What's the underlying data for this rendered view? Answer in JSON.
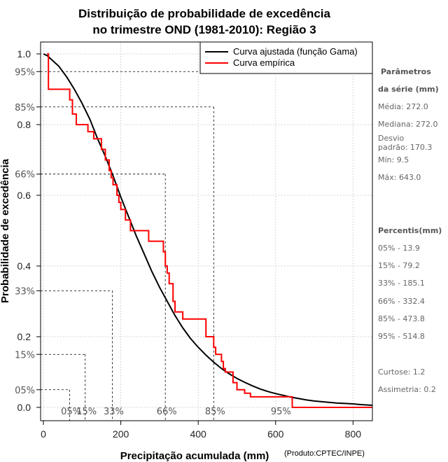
{
  "chart_data": {
    "type": "line",
    "title_line1": "Distribuição de probabilidade de excedência",
    "title_line2": "no trimestre OND (1981-2010): Região 3",
    "xlabel": "Precipitação acumulada (mm)",
    "ylabel": "Probabilidade de excedência",
    "credit": "(Produto:CPTEC/INPE)",
    "xlim": [
      0,
      850
    ],
    "ylim": [
      -0.04,
      1.04
    ],
    "x_ticks": [
      0,
      200,
      400,
      600,
      800
    ],
    "x_tick_labels": [
      "0",
      "200",
      "400",
      "600",
      "800"
    ],
    "y_ticks": [
      0.0,
      0.2,
      0.4,
      0.6,
      0.8,
      1.0
    ],
    "y_tick_labels": [
      "0.0",
      "0.2",
      "0.4",
      "0.6",
      "0.8",
      "1.0"
    ],
    "pct_y_ticks": [
      0.05,
      0.15,
      0.33,
      0.66,
      0.85,
      0.95
    ],
    "pct_y_labels": [
      "05%",
      "15%",
      "33%",
      "66%",
      "85%",
      "95%"
    ],
    "pct_x": [
      68,
      108,
      178,
      315,
      440,
      0
    ],
    "pct_x_labels": [
      "05%",
      "15%",
      "33%",
      "66%",
      "85%",
      "95%"
    ],
    "pct_x_label_pos": [
      68,
      108,
      178,
      315,
      440,
      610
    ],
    "series": [
      {
        "name": "Curva ajustada (função Gama)",
        "color": "#000000",
        "x": [
          0,
          10,
          20,
          40,
          60,
          80,
          100,
          120,
          140,
          160,
          180,
          200,
          220,
          240,
          260,
          280,
          300,
          320,
          340,
          360,
          380,
          400,
          420,
          440,
          460,
          480,
          500,
          520,
          540,
          560,
          580,
          600,
          620,
          640,
          660,
          680,
          700,
          720,
          740,
          760,
          780,
          800,
          820,
          850
        ],
        "y": [
          1.0,
          0.995,
          0.985,
          0.965,
          0.935,
          0.9,
          0.86,
          0.815,
          0.76,
          0.71,
          0.655,
          0.595,
          0.54,
          0.485,
          0.435,
          0.385,
          0.34,
          0.3,
          0.26,
          0.225,
          0.195,
          0.17,
          0.148,
          0.128,
          0.11,
          0.095,
          0.082,
          0.071,
          0.061,
          0.052,
          0.045,
          0.039,
          0.034,
          0.029,
          0.025,
          0.021,
          0.018,
          0.016,
          0.014,
          0.012,
          0.011,
          0.01,
          0.008,
          0.006
        ]
      },
      {
        "name": "Curva empírica",
        "color": "#ff0000",
        "x": [
          9.5,
          13,
          13,
          52,
          52,
          58,
          58,
          68,
          68,
          75,
          75,
          85,
          85,
          115,
          115,
          130,
          130,
          150,
          150,
          160,
          160,
          170,
          170,
          175,
          175,
          180,
          180,
          190,
          190,
          195,
          195,
          200,
          200,
          212,
          212,
          225,
          225,
          235,
          235,
          240,
          240,
          272,
          272,
          310,
          310,
          315,
          315,
          320,
          320,
          325,
          325,
          335,
          335,
          340,
          340,
          360,
          360,
          390,
          390,
          420,
          420,
          440,
          440,
          445,
          445,
          460,
          460,
          465,
          465,
          470,
          470,
          490,
          490,
          500,
          500,
          520,
          520,
          535,
          535,
          560,
          560,
          600,
          600,
          640,
          640,
          643,
          643,
          850
        ],
        "y": [
          1.0,
          1.0,
          0.9,
          0.9,
          0.9,
          0.9,
          0.9,
          0.9,
          0.87,
          0.87,
          0.83,
          0.83,
          0.8,
          0.8,
          0.78,
          0.78,
          0.76,
          0.76,
          0.73,
          0.73,
          0.7,
          0.7,
          0.67,
          0.67,
          0.65,
          0.65,
          0.63,
          0.63,
          0.6,
          0.6,
          0.58,
          0.58,
          0.56,
          0.56,
          0.53,
          0.53,
          0.5,
          0.5,
          0.5,
          0.5,
          0.5,
          0.5,
          0.47,
          0.47,
          0.44,
          0.44,
          0.4,
          0.4,
          0.38,
          0.38,
          0.35,
          0.35,
          0.3,
          0.3,
          0.27,
          0.27,
          0.25,
          0.25,
          0.25,
          0.25,
          0.2,
          0.2,
          0.17,
          0.17,
          0.15,
          0.15,
          0.13,
          0.13,
          0.11,
          0.11,
          0.1,
          0.1,
          0.07,
          0.07,
          0.05,
          0.05,
          0.04,
          0.04,
          0.03,
          0.03,
          0.03,
          0.03,
          0.03,
          0.03,
          0.03,
          0.03,
          0.0,
          0.0
        ]
      }
    ],
    "legend": {
      "placement": "top-right",
      "entries": [
        "Curva ajustada (função Gama)",
        "Curva empírica"
      ]
    },
    "grid": true
  },
  "side_panel": {
    "params_title_1": "Parâmetros",
    "params_title_2": "da série (mm)",
    "media": "Média: 272.0",
    "mediana": "Mediana: 272.0",
    "desvio_1": "Desvio",
    "desvio_2": "padrão: 170.3",
    "min": "Mín: 9.5",
    "max": "Máx: 643.0",
    "percentis_title": "Percentis(mm)",
    "percentis": [
      "05% - 13.9",
      "15% - 79.2",
      "33% - 185.1",
      "66% - 332.4",
      "85% - 473.8",
      "95% - 514.8"
    ],
    "curtose": "Curtose: 1.2",
    "assimetria": "Assimetria: 0.2"
  }
}
